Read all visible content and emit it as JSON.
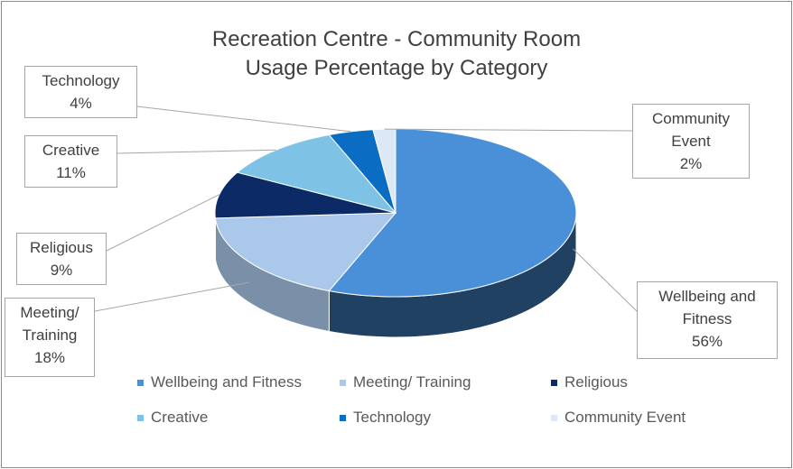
{
  "chart_data": {
    "type": "pie3d",
    "title": "Recreation Centre - Community Room Usage Percentage by Category",
    "categories": [
      "Wellbeing and Fitness",
      "Meeting/ Training",
      "Religious",
      "Creative",
      "Technology",
      "Community Event"
    ],
    "values": [
      56,
      18,
      9,
      11,
      4,
      2
    ],
    "value_labels": [
      "56%",
      "18%",
      "9%",
      "11%",
      "4%",
      "2%"
    ],
    "colors": [
      "#4a90d9",
      "#a9c8ea",
      "#0c2a66",
      "#7ec3e6",
      "#0a6cc2",
      "#dce8f5"
    ],
    "legend": "bottom"
  }
}
